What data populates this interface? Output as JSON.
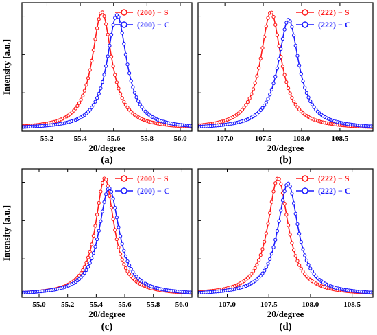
{
  "figure": {
    "ylabel": "Intensity [a.u.]"
  },
  "chart_data": [
    {
      "type": "line",
      "panel": "(a)",
      "xlabel": "2θ/degree",
      "xlim": [
        55.05,
        56.07
      ],
      "xticks": [
        55.2,
        55.4,
        55.6,
        55.8,
        56.0
      ],
      "ylim": [
        0,
        1.1
      ],
      "yticks_shown": 3,
      "legend": "top-right",
      "series": [
        {
          "name": "(200) − S",
          "color": "#ff1a1a",
          "center": 55.53,
          "fwhm": 0.145,
          "peak": 1.0,
          "baseline": 0.02
        },
        {
          "name": "(200) − C",
          "color": "#1a1aff",
          "center": 55.62,
          "fwhm": 0.145,
          "peak": 0.975,
          "baseline": 0.02
        }
      ]
    },
    {
      "type": "line",
      "panel": "(b)",
      "xlabel": "2θ/degree",
      "xlim": [
        106.65,
        108.93
      ],
      "xticks": [
        107.0,
        107.5,
        108.0,
        108.5
      ],
      "ylim": [
        0,
        1.1
      ],
      "yticks_shown": 3,
      "legend": "top-right",
      "series": [
        {
          "name": "(222) − S",
          "color": "#ff1a1a",
          "center": 107.6,
          "fwhm": 0.33,
          "peak": 1.0,
          "baseline": 0.02
        },
        {
          "name": "(222) − C",
          "color": "#1a1aff",
          "center": 107.83,
          "fwhm": 0.33,
          "peak": 0.935,
          "baseline": 0.02
        }
      ]
    },
    {
      "type": "line",
      "panel": "(c)",
      "xlabel": "2θ/degree",
      "xlim": [
        54.88,
        56.07
      ],
      "xticks": [
        55.0,
        55.2,
        55.4,
        55.6,
        55.8,
        56.0
      ],
      "ylim": [
        0,
        1.1
      ],
      "yticks_shown": 3,
      "legend": "top-right",
      "series": [
        {
          "name": "(200) − S",
          "color": "#ff1a1a",
          "center": 55.46,
          "fwhm": 0.16,
          "peak": 1.0,
          "baseline": 0.02
        },
        {
          "name": "(200) − C",
          "color": "#1a1aff",
          "center": 55.49,
          "fwhm": 0.175,
          "peak": 0.915,
          "baseline": 0.02
        }
      ]
    },
    {
      "type": "line",
      "panel": "(d)",
      "xlabel": "2θ/degree",
      "xlim": [
        106.65,
        108.75
      ],
      "xticks": [
        107.0,
        107.5,
        108.0,
        108.5
      ],
      "ylim": [
        0,
        1.1
      ],
      "yticks_shown": 3,
      "legend": "top-right",
      "series": [
        {
          "name": "(222) − S",
          "color": "#ff1a1a",
          "center": 107.61,
          "fwhm": 0.3,
          "peak": 1.0,
          "baseline": 0.02
        },
        {
          "name": "(222) − C",
          "color": "#1a1aff",
          "center": 107.73,
          "fwhm": 0.3,
          "peak": 0.955,
          "baseline": 0.02
        }
      ]
    }
  ]
}
